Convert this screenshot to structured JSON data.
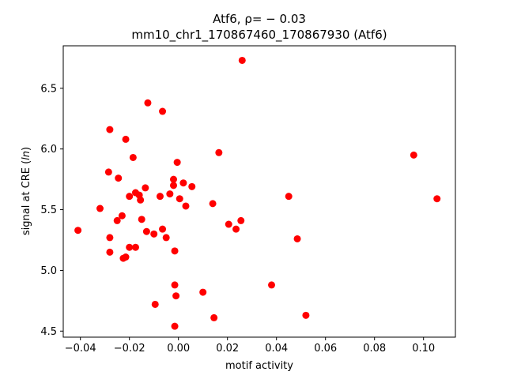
{
  "chart_data": {
    "type": "scatter",
    "title_line1": "Atf6, ρ= − 0.03",
    "title_line2": "mm10_chr1_170867460_170867930 (Atf6)",
    "xlabel": "motif activity",
    "ylabel": "signal at CRE (ln)",
    "xlim": [
      -0.047,
      0.113
    ],
    "ylim": [
      4.45,
      6.85
    ],
    "xticks": [
      -0.04,
      -0.02,
      0.0,
      0.02,
      0.04,
      0.06,
      0.08,
      0.1
    ],
    "xtick_labels": [
      "−0.04",
      "−0.02",
      "0.00",
      "0.02",
      "0.04",
      "0.06",
      "0.08",
      "0.10"
    ],
    "yticks": [
      4.5,
      5.0,
      5.5,
      6.0,
      6.5
    ],
    "ytick_labels": [
      "4.5",
      "5.0",
      "5.5",
      "6.0",
      "6.5"
    ],
    "grid": false,
    "marker_color": "#ff0000",
    "points": [
      {
        "x": -0.041,
        "y": 5.33
      },
      {
        "x": -0.032,
        "y": 5.51
      },
      {
        "x": -0.028,
        "y": 6.16
      },
      {
        "x": -0.0285,
        "y": 5.81
      },
      {
        "x": -0.028,
        "y": 5.27
      },
      {
        "x": -0.028,
        "y": 5.15
      },
      {
        "x": -0.025,
        "y": 5.41
      },
      {
        "x": -0.0245,
        "y": 5.76
      },
      {
        "x": -0.023,
        "y": 5.45
      },
      {
        "x": -0.0225,
        "y": 5.1
      },
      {
        "x": -0.0215,
        "y": 5.11
      },
      {
        "x": -0.0215,
        "y": 6.08
      },
      {
        "x": -0.02,
        "y": 5.61
      },
      {
        "x": -0.02,
        "y": 5.19
      },
      {
        "x": -0.0185,
        "y": 5.93
      },
      {
        "x": -0.0175,
        "y": 5.64
      },
      {
        "x": -0.0175,
        "y": 5.19
      },
      {
        "x": -0.016,
        "y": 5.62
      },
      {
        "x": -0.0155,
        "y": 5.58
      },
      {
        "x": -0.015,
        "y": 5.42
      },
      {
        "x": -0.0135,
        "y": 5.68
      },
      {
        "x": -0.013,
        "y": 5.32
      },
      {
        "x": -0.0125,
        "y": 6.38
      },
      {
        "x": -0.01,
        "y": 5.3
      },
      {
        "x": -0.0095,
        "y": 4.72
      },
      {
        "x": -0.0075,
        "y": 5.61
      },
      {
        "x": -0.0065,
        "y": 5.34
      },
      {
        "x": -0.0065,
        "y": 6.31
      },
      {
        "x": -0.005,
        "y": 5.27
      },
      {
        "x": -0.0035,
        "y": 5.63
      },
      {
        "x": -0.002,
        "y": 5.75
      },
      {
        "x": -0.002,
        "y": 5.7
      },
      {
        "x": -0.0015,
        "y": 5.16
      },
      {
        "x": -0.0015,
        "y": 4.88
      },
      {
        "x": -0.0015,
        "y": 4.54
      },
      {
        "x": -0.001,
        "y": 4.79
      },
      {
        "x": -0.0005,
        "y": 5.89
      },
      {
        "x": 0.0005,
        "y": 5.59
      },
      {
        "x": 0.002,
        "y": 5.72
      },
      {
        "x": 0.003,
        "y": 5.53
      },
      {
        "x": 0.0055,
        "y": 5.69
      },
      {
        "x": 0.01,
        "y": 4.82
      },
      {
        "x": 0.014,
        "y": 5.55
      },
      {
        "x": 0.0145,
        "y": 4.61
      },
      {
        "x": 0.0165,
        "y": 5.97
      },
      {
        "x": 0.0205,
        "y": 5.38
      },
      {
        "x": 0.0235,
        "y": 5.34
      },
      {
        "x": 0.0255,
        "y": 5.41
      },
      {
        "x": 0.026,
        "y": 6.73
      },
      {
        "x": 0.038,
        "y": 4.88
      },
      {
        "x": 0.045,
        "y": 5.61
      },
      {
        "x": 0.0485,
        "y": 5.26
      },
      {
        "x": 0.052,
        "y": 4.63
      },
      {
        "x": 0.096,
        "y": 5.95
      },
      {
        "x": 0.1055,
        "y": 5.59
      }
    ]
  }
}
